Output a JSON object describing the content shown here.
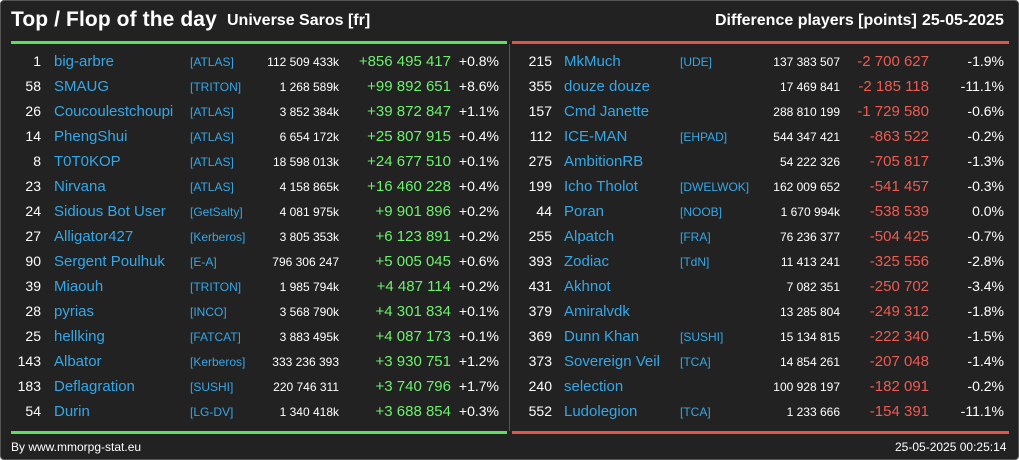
{
  "header": {
    "title": "Top / Flop of the day",
    "universe": "Universe Saros [fr]",
    "metric": "Difference players [points]",
    "date": "25-05-2025"
  },
  "colors": {
    "background": "#222222",
    "top_accent": "#5ee05e",
    "flop_accent": "#e0544c",
    "name_link": "#35a7e8",
    "positive": "#6ef06e",
    "negative": "#ef5a52"
  },
  "top": [
    {
      "rank": "1",
      "name": "big-arbre",
      "alliance": "[ATLAS]",
      "points": "112 509 433k",
      "diff": "+856 495 417",
      "pct": "+0.8%"
    },
    {
      "rank": "58",
      "name": "SMAUG",
      "alliance": "[TRITON]",
      "points": "1 268 589k",
      "diff": "+99 892 651",
      "pct": "+8.6%"
    },
    {
      "rank": "26",
      "name": "Coucoulestchoupi",
      "alliance": "[ATLAS]",
      "points": "3 852 384k",
      "diff": "+39 872 847",
      "pct": "+1.1%"
    },
    {
      "rank": "14",
      "name": "PhengShui",
      "alliance": "[ATLAS]",
      "points": "6 654 172k",
      "diff": "+25 807 915",
      "pct": "+0.4%"
    },
    {
      "rank": "8",
      "name": "T0T0KOP",
      "alliance": "[ATLAS]",
      "points": "18 598 013k",
      "diff": "+24 677 510",
      "pct": "+0.1%"
    },
    {
      "rank": "23",
      "name": "Nirvana",
      "alliance": "[ATLAS]",
      "points": "4 158 865k",
      "diff": "+16 460 228",
      "pct": "+0.4%"
    },
    {
      "rank": "24",
      "name": "Sidious Bot User",
      "alliance": "[GetSalty]",
      "points": "4 081 975k",
      "diff": "+9 901 896",
      "pct": "+0.2%"
    },
    {
      "rank": "27",
      "name": "Alligator427",
      "alliance": "[Kerberos]",
      "points": "3 805 353k",
      "diff": "+6 123 891",
      "pct": "+0.2%"
    },
    {
      "rank": "90",
      "name": "Sergent Poulhuk",
      "alliance": "[E-A]",
      "points": "796 306 247",
      "diff": "+5 005 045",
      "pct": "+0.6%"
    },
    {
      "rank": "39",
      "name": "Miaouh",
      "alliance": "[TRITON]",
      "points": "1 985 794k",
      "diff": "+4 487 114",
      "pct": "+0.2%"
    },
    {
      "rank": "28",
      "name": "pyrias",
      "alliance": "[INCO]",
      "points": "3 568 790k",
      "diff": "+4 301 834",
      "pct": "+0.1%"
    },
    {
      "rank": "25",
      "name": "hellking",
      "alliance": "[FATCAT]",
      "points": "3 883 495k",
      "diff": "+4 087 173",
      "pct": "+0.1%"
    },
    {
      "rank": "143",
      "name": "Albator",
      "alliance": "[Kerberos]",
      "points": "333 236 393",
      "diff": "+3 930 751",
      "pct": "+1.2%"
    },
    {
      "rank": "183",
      "name": "Deflagration",
      "alliance": "[SUSHI]",
      "points": "220 746 311",
      "diff": "+3 740 796",
      "pct": "+1.7%"
    },
    {
      "rank": "54",
      "name": "Durin",
      "alliance": "[LG-DV]",
      "points": "1 340 418k",
      "diff": "+3 688 854",
      "pct": "+0.3%"
    }
  ],
  "flop": [
    {
      "rank": "215",
      "name": "MkMuch",
      "alliance": "[UDE]",
      "points": "137 383 507",
      "diff": "-2 700 627",
      "pct": "-1.9%"
    },
    {
      "rank": "355",
      "name": "douze douze",
      "alliance": "",
      "points": "17 469 841",
      "diff": "-2 185 118",
      "pct": "-11.1%"
    },
    {
      "rank": "157",
      "name": "Cmd Janette",
      "alliance": "",
      "points": "288 810 199",
      "diff": "-1 729 580",
      "pct": "-0.6%"
    },
    {
      "rank": "112",
      "name": "ICE-MAN",
      "alliance": "[EHPAD]",
      "points": "544 347 421",
      "diff": "-863 522",
      "pct": "-0.2%"
    },
    {
      "rank": "275",
      "name": "AmbitionRB",
      "alliance": "",
      "points": "54 222 326",
      "diff": "-705 817",
      "pct": "-1.3%"
    },
    {
      "rank": "199",
      "name": "Icho Tholot",
      "alliance": "[DWELWOK]",
      "points": "162 009 652",
      "diff": "-541 457",
      "pct": "-0.3%"
    },
    {
      "rank": "44",
      "name": "Poran",
      "alliance": "[NOOB]",
      "points": "1 670 994k",
      "diff": "-538 539",
      "pct": "0.0%"
    },
    {
      "rank": "255",
      "name": "Alpatch",
      "alliance": "[FRA]",
      "points": "76 236 377",
      "diff": "-504 425",
      "pct": "-0.7%"
    },
    {
      "rank": "393",
      "name": "Zodiac",
      "alliance": "[TdN]",
      "points": "11 413 241",
      "diff": "-325 556",
      "pct": "-2.8%"
    },
    {
      "rank": "431",
      "name": "Akhnot",
      "alliance": "",
      "points": "7 082 351",
      "diff": "-250 702",
      "pct": "-3.4%"
    },
    {
      "rank": "379",
      "name": "Amiralvdk",
      "alliance": "",
      "points": "13 285 804",
      "diff": "-249 312",
      "pct": "-1.8%"
    },
    {
      "rank": "369",
      "name": "Dunn Khan",
      "alliance": "[SUSHI]",
      "points": "15 134 815",
      "diff": "-222 340",
      "pct": "-1.5%"
    },
    {
      "rank": "373",
      "name": "Sovereign Veil",
      "alliance": "[TCA]",
      "points": "14 854 261",
      "diff": "-207 048",
      "pct": "-1.4%"
    },
    {
      "rank": "240",
      "name": "selection",
      "alliance": "",
      "points": "100 928 197",
      "diff": "-182 091",
      "pct": "-0.2%"
    },
    {
      "rank": "552",
      "name": "Ludolegion",
      "alliance": "[TCA]",
      "points": "1 233 666",
      "diff": "-154 391",
      "pct": "-11.1%"
    }
  ],
  "footer": {
    "source": "By www.mmorpg-stat.eu",
    "timestamp": "25-05-2025 00:25:14"
  }
}
